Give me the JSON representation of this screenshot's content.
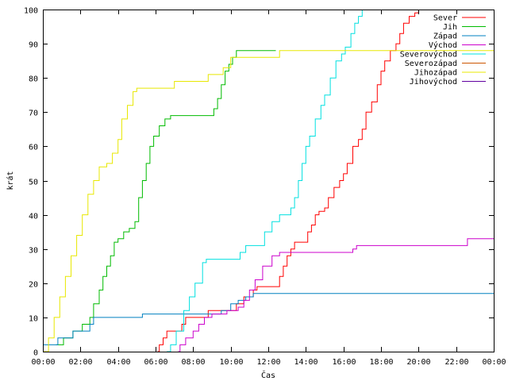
{
  "chart_data": {
    "type": "line",
    "xlabel": "Čas",
    "ylabel": "krát",
    "xlim": [
      0,
      24
    ],
    "ylim": [
      0,
      100
    ],
    "x_ticks": [
      {
        "v": 0,
        "label": "00:00"
      },
      {
        "v": 2,
        "label": "02:00"
      },
      {
        "v": 4,
        "label": "04:00"
      },
      {
        "v": 6,
        "label": "06:00"
      },
      {
        "v": 8,
        "label": "08:00"
      },
      {
        "v": 10,
        "label": "10:00"
      },
      {
        "v": 12,
        "label": "12:00"
      },
      {
        "v": 14,
        "label": "14:00"
      },
      {
        "v": 16,
        "label": "16:00"
      },
      {
        "v": 18,
        "label": "18:00"
      },
      {
        "v": 20,
        "label": "20:00"
      },
      {
        "v": 22,
        "label": "22:00"
      },
      {
        "v": 24,
        "label": "00:00"
      }
    ],
    "y_ticks": [
      0,
      10,
      20,
      30,
      40,
      50,
      60,
      70,
      80,
      90,
      100
    ],
    "grid": false,
    "legend": "top-right",
    "series": [
      {
        "name": "Sever",
        "color": "#ff0000",
        "points": [
          [
            6.1,
            0
          ],
          [
            6.2,
            2
          ],
          [
            6.4,
            4
          ],
          [
            6.6,
            6
          ],
          [
            7.2,
            6
          ],
          [
            7.4,
            8
          ],
          [
            7.6,
            10
          ],
          [
            8.5,
            10
          ],
          [
            8.8,
            12
          ],
          [
            9.8,
            12
          ],
          [
            10.3,
            14
          ],
          [
            10.7,
            16
          ],
          [
            11.2,
            18
          ],
          [
            11.4,
            19
          ],
          [
            12.4,
            19
          ],
          [
            12.6,
            22
          ],
          [
            12.8,
            25
          ],
          [
            13.0,
            28
          ],
          [
            13.2,
            30
          ],
          [
            13.4,
            32
          ],
          [
            14.0,
            32
          ],
          [
            14.1,
            35
          ],
          [
            14.3,
            37
          ],
          [
            14.5,
            40
          ],
          [
            14.7,
            41
          ],
          [
            15.0,
            42
          ],
          [
            15.2,
            45
          ],
          [
            15.5,
            48
          ],
          [
            15.8,
            50
          ],
          [
            16.0,
            52
          ],
          [
            16.2,
            55
          ],
          [
            16.5,
            60
          ],
          [
            16.8,
            62
          ],
          [
            17.0,
            65
          ],
          [
            17.2,
            70
          ],
          [
            17.5,
            73
          ],
          [
            17.8,
            78
          ],
          [
            18.0,
            82
          ],
          [
            18.2,
            85
          ],
          [
            18.5,
            88
          ],
          [
            18.8,
            90
          ],
          [
            19.0,
            93
          ],
          [
            19.2,
            96
          ],
          [
            19.5,
            98
          ],
          [
            19.8,
            99
          ],
          [
            20.0,
            100
          ]
        ]
      },
      {
        "name": "Jih",
        "color": "#00bb00",
        "points": [
          [
            0.7,
            2
          ],
          [
            1.1,
            4
          ],
          [
            1.6,
            6
          ],
          [
            2.1,
            8
          ],
          [
            2.5,
            10
          ],
          [
            2.7,
            14
          ],
          [
            3.0,
            18
          ],
          [
            3.2,
            22
          ],
          [
            3.4,
            25
          ],
          [
            3.6,
            28
          ],
          [
            3.8,
            32
          ],
          [
            4.0,
            33
          ],
          [
            4.3,
            35
          ],
          [
            4.6,
            36
          ],
          [
            4.9,
            38
          ],
          [
            5.1,
            45
          ],
          [
            5.3,
            50
          ],
          [
            5.5,
            55
          ],
          [
            5.7,
            60
          ],
          [
            5.9,
            63
          ],
          [
            6.2,
            66
          ],
          [
            6.5,
            68
          ],
          [
            6.8,
            69
          ],
          [
            8.9,
            69
          ],
          [
            9.1,
            71
          ],
          [
            9.3,
            74
          ],
          [
            9.5,
            78
          ],
          [
            9.7,
            82
          ],
          [
            9.9,
            84
          ],
          [
            10.1,
            86
          ],
          [
            10.3,
            88
          ],
          [
            12.4,
            88
          ]
        ]
      },
      {
        "name": "Západ",
        "color": "#0080c0",
        "points": [
          [
            0,
            2
          ],
          [
            0.5,
            2
          ],
          [
            0.8,
            4
          ],
          [
            1.4,
            4
          ],
          [
            1.6,
            6
          ],
          [
            2.3,
            6
          ],
          [
            2.5,
            8
          ],
          [
            2.7,
            10
          ],
          [
            5.0,
            10
          ],
          [
            5.3,
            11
          ],
          [
            9.0,
            11
          ],
          [
            9.5,
            12
          ],
          [
            10.0,
            14
          ],
          [
            10.4,
            15
          ],
          [
            10.8,
            16
          ],
          [
            11.2,
            17
          ],
          [
            24,
            17
          ]
        ]
      },
      {
        "name": "Východ",
        "color": "#cc00cc",
        "points": [
          [
            7.2,
            0
          ],
          [
            7.3,
            2
          ],
          [
            7.6,
            4
          ],
          [
            8.0,
            6
          ],
          [
            8.3,
            8
          ],
          [
            8.6,
            10
          ],
          [
            9.0,
            11
          ],
          [
            9.6,
            11
          ],
          [
            9.8,
            12
          ],
          [
            10.4,
            13
          ],
          [
            10.7,
            15
          ],
          [
            11.0,
            18
          ],
          [
            11.3,
            21
          ],
          [
            11.7,
            25
          ],
          [
            12.2,
            28
          ],
          [
            12.6,
            29
          ],
          [
            16.3,
            29
          ],
          [
            16.5,
            30
          ],
          [
            16.7,
            31
          ],
          [
            22.4,
            31
          ],
          [
            22.6,
            33
          ],
          [
            24,
            33
          ]
        ]
      },
      {
        "name": "Severovýchod",
        "color": "#00e0e0",
        "points": [
          [
            6.6,
            0
          ],
          [
            6.8,
            2
          ],
          [
            7.1,
            6
          ],
          [
            7.5,
            12
          ],
          [
            7.8,
            16
          ],
          [
            8.1,
            20
          ],
          [
            8.5,
            26
          ],
          [
            8.7,
            27
          ],
          [
            10.3,
            27
          ],
          [
            10.5,
            29
          ],
          [
            10.8,
            31
          ],
          [
            11.6,
            31
          ],
          [
            11.8,
            35
          ],
          [
            12.2,
            38
          ],
          [
            12.6,
            40
          ],
          [
            13.2,
            42
          ],
          [
            13.4,
            45
          ],
          [
            13.6,
            50
          ],
          [
            13.8,
            55
          ],
          [
            14.0,
            60
          ],
          [
            14.2,
            63
          ],
          [
            14.5,
            68
          ],
          [
            14.8,
            72
          ],
          [
            15.0,
            75
          ],
          [
            15.3,
            80
          ],
          [
            15.6,
            85
          ],
          [
            15.9,
            87
          ],
          [
            16.1,
            89
          ],
          [
            16.4,
            93
          ],
          [
            16.6,
            96
          ],
          [
            16.8,
            98
          ],
          [
            17.0,
            100
          ]
        ]
      },
      {
        "name": "Severozápad",
        "color": "#cc5500",
        "points": []
      },
      {
        "name": "Jihozápad",
        "color": "#e8e800",
        "points": [
          [
            0,
            0
          ],
          [
            0.3,
            4
          ],
          [
            0.6,
            10
          ],
          [
            0.9,
            16
          ],
          [
            1.2,
            22
          ],
          [
            1.5,
            28
          ],
          [
            1.8,
            34
          ],
          [
            2.1,
            40
          ],
          [
            2.4,
            46
          ],
          [
            2.7,
            50
          ],
          [
            3.0,
            54
          ],
          [
            3.4,
            55
          ],
          [
            3.7,
            58
          ],
          [
            4.0,
            62
          ],
          [
            4.2,
            68
          ],
          [
            4.5,
            72
          ],
          [
            4.8,
            76
          ],
          [
            5.0,
            77
          ],
          [
            6.8,
            77
          ],
          [
            7.0,
            79
          ],
          [
            8.6,
            79
          ],
          [
            8.8,
            81
          ],
          [
            9.4,
            81
          ],
          [
            9.6,
            83
          ],
          [
            10.0,
            86
          ],
          [
            12.5,
            86
          ],
          [
            12.6,
            88
          ],
          [
            24,
            88
          ]
        ]
      },
      {
        "name": "Jihovýchod",
        "color": "#6000a0",
        "points": []
      }
    ]
  }
}
